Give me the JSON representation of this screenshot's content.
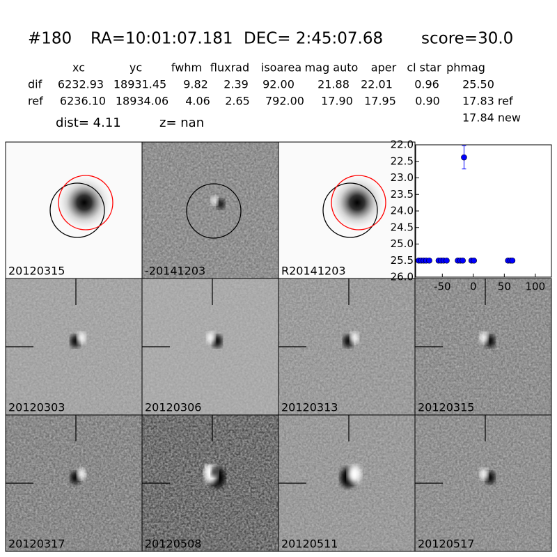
{
  "header": {
    "id": "#180",
    "ra": "RA=10:01:07.181",
    "dec": "DEC= 2:45:07.68",
    "score": "score=30.0"
  },
  "table": {
    "columns": [
      "xc",
      "yc",
      "fwhm",
      "fluxrad",
      "isoarea",
      "mag auto",
      "aper",
      "cl star",
      "phmag"
    ],
    "rows": [
      [
        "dif",
        "6232.93",
        "18931.45",
        "9.82",
        "2.39",
        "92.00",
        "21.88",
        "22.01",
        "0.96",
        "25.50"
      ],
      [
        "ref",
        "6236.10",
        "18934.06",
        "4.06",
        "2.65",
        "792.00",
        "17.90",
        "17.95",
        "0.90",
        "17.83 ref"
      ]
    ],
    "extra": "17.84 new"
  },
  "dist": "dist=  4.11",
  "z": "z=   nan",
  "panels": [
    {
      "label": "20120315",
      "label_color": "#000000"
    },
    {
      "label": "-20141203",
      "label_color": "#000000"
    },
    {
      "label": "R20141203",
      "label_color": "#000000"
    },
    {
      "label": "20120303",
      "label_color": "#000000"
    },
    {
      "label": "20120306",
      "label_color": "#000000"
    },
    {
      "label": "20120313",
      "label_color": "#000000"
    },
    {
      "label": "20120315",
      "label_color": "#ff0000"
    },
    {
      "label": "20120317",
      "label_color": "#000000"
    },
    {
      "label": "20120508",
      "label_color": "#000000"
    },
    {
      "label": "20120511",
      "label_color": "#000000"
    },
    {
      "label": "20120517",
      "label_color": "#000000"
    }
  ],
  "chart_data": {
    "type": "scatter",
    "series": [
      {
        "color": "#0000ff",
        "x": [
          -88,
          -84,
          -80,
          -76,
          -71,
          -56,
          -52,
          -48,
          -43,
          -25,
          -21,
          -17,
          -3,
          1,
          56,
          60,
          63
        ],
        "values": [
          25.5,
          25.5,
          25.5,
          25.5,
          25.5,
          25.5,
          25.5,
          25.5,
          25.5,
          25.5,
          25.5,
          25.5,
          25.5,
          25.5,
          25.5,
          25.5,
          25.5
        ]
      },
      {
        "color": "#0000ff",
        "x": [
          -15
        ],
        "values": [
          22.38
        ],
        "errors": [
          0.35
        ]
      }
    ],
    "xlim": [
      -93,
      126
    ],
    "xticks": [
      -50,
      0,
      50,
      100
    ],
    "ylim": [
      26.0,
      22.0
    ],
    "yticks": [
      {
        "value": 22.0,
        "label": "22.0"
      },
      22.5,
      {
        "value": 23.0,
        "label": "23.0"
      },
      23.5,
      {
        "value": 24.0,
        "label": "24.0"
      },
      24.5,
      {
        "value": 25.0,
        "label": "25.0"
      },
      25.5,
      {
        "value": 26.0,
        "label": "26.0"
      }
    ]
  }
}
